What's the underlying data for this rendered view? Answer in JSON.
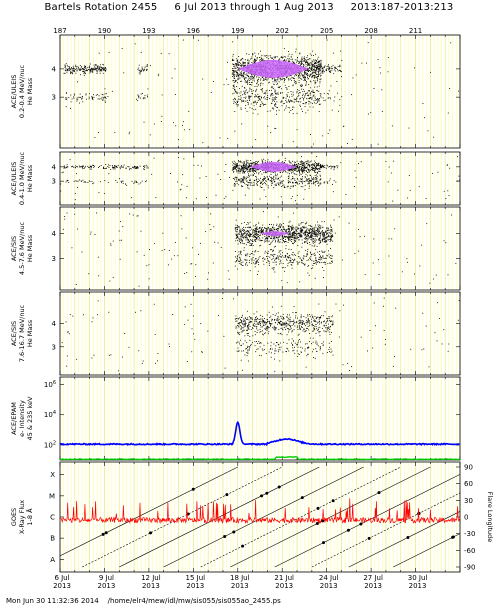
{
  "title": "Bartels Rotation 2455     6 Jul 2013 through 1 Aug 2013     2013:187-2013:213",
  "footer": "Mon Jun 30 11:32:36 2014    /home/elr4/mew/idl/mw/sis055/sis055ao_2455.ps",
  "chart_data": {
    "type": "scatter",
    "x_range_doy": [
      187,
      214
    ],
    "top_ticks": [
      "187",
      "190",
      "193",
      "196",
      "199",
      "202",
      "205",
      "208",
      "211"
    ],
    "bottom_ticks": [
      {
        "day": "6 Jul",
        "year": "2013"
      },
      {
        "day": "9 Jul",
        "year": "2013"
      },
      {
        "day": "12 Jul",
        "year": "2013"
      },
      {
        "day": "15 Jul",
        "year": "2013"
      },
      {
        "day": "18 Jul",
        "year": "2013"
      },
      {
        "day": "21 Jul",
        "year": "2013"
      },
      {
        "day": "24 Jul",
        "year": "2013"
      },
      {
        "day": "27 Jul",
        "year": "2013"
      },
      {
        "day": "30 Jul",
        "year": "2013"
      }
    ],
    "grid_color": "#ffff99",
    "panels": [
      {
        "ylabel": [
          "ACE/ULEIS",
          "0.2-0.4 MeV/nuc",
          "He Mass"
        ],
        "yticks": [
          "4",
          "3"
        ],
        "point_color": "#000000",
        "highlight_color": "#cc66ff",
        "bursts": [
          {
            "start": 187.3,
            "end": 190.1,
            "density": 1.0
          },
          {
            "start": 192.2,
            "end": 192.9,
            "density": 0.7
          },
          {
            "start": 198.6,
            "end": 204.6,
            "density": 3.0
          },
          {
            "start": 204.6,
            "end": 206.0,
            "density": 0.6
          }
        ]
      },
      {
        "ylabel": [
          "ACE/ULEIS",
          "0.4-1.0 MeV/nuc",
          "He Mass"
        ],
        "yticks": [
          "4",
          "3"
        ],
        "point_color": "#000000",
        "highlight_color": "#cc66ff",
        "bursts": [
          {
            "start": 187.2,
            "end": 193.0,
            "density": 0.4
          },
          {
            "start": 198.6,
            "end": 204.6,
            "density": 2.6
          },
          {
            "start": 204.6,
            "end": 205.8,
            "density": 0.5
          }
        ]
      },
      {
        "ylabel": [
          "ACE/SIS",
          "4.5-7.6 MeV/nuc",
          "He Mass"
        ],
        "yticks": [
          "4",
          "3"
        ],
        "point_color": "#000000",
        "highlight_color": "#cc66ff",
        "bursts": [
          {
            "start": 198.8,
            "end": 205.4,
            "density": 2.4
          }
        ]
      },
      {
        "ylabel": [
          "ACE/SIS",
          "7.6-16.7 MeV/nuc",
          "He Mass"
        ],
        "yticks": [
          "4",
          "3"
        ],
        "point_color": "#000000",
        "highlight_color": "#cc66ff",
        "bursts": [
          {
            "start": 198.8,
            "end": 205.4,
            "density": 1.6
          }
        ]
      },
      {
        "ylabel": [
          "ACE/EPAM",
          "e- Intensity",
          "45 & 235 keV"
        ],
        "yticks": [
          "10^6",
          "10^4",
          "10^2"
        ],
        "series": [
          {
            "name": "45 keV",
            "color": "#0000ff",
            "log_intensity_level": 2.05,
            "peak": {
              "day": 199.0,
              "log": 3.5
            }
          },
          {
            "name": "235 keV",
            "color": "#00cc00",
            "log_intensity_level": 1.05
          }
        ]
      },
      {
        "ylabel": [
          "GOES",
          "X-Ray Flux",
          "1-8 Å"
        ],
        "yticks": [
          "X",
          "M",
          "C",
          "B",
          "A"
        ],
        "y2label": "Flare Longitude",
        "y2ticks": [
          "90",
          "60",
          "30",
          "0",
          "-30",
          "-60",
          "-90"
        ],
        "flux_color": "#ff0000",
        "flux_log_level": -6.15
      }
    ]
  }
}
